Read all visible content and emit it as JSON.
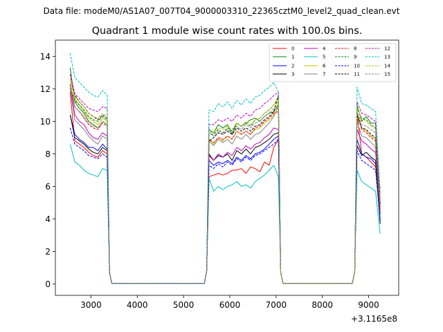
{
  "header": {
    "suptitle": "Data file: modeM0/AS1A07_007T04_9000003310_22365cztM0_level2_quad_clean.evt"
  },
  "chart_data": {
    "type": "line",
    "title": "Quadrant 1 module wise count rates with 100.0s bins.",
    "xlabel": "",
    "ylabel": "",
    "x_offset_label": "+3.1165e8",
    "xlim": [
      2230,
      9650
    ],
    "ylim": [
      -0.7,
      15.0
    ],
    "xticks": [
      3000,
      4000,
      5000,
      6000,
      7000,
      8000,
      9000
    ],
    "xtick_labels": [
      "3000",
      "4000",
      "5000",
      "6000",
      "7000",
      "8000",
      "9000"
    ],
    "yticks": [
      0,
      2,
      4,
      6,
      8,
      10,
      12,
      14
    ],
    "ytick_labels": [
      "0",
      "2",
      "4",
      "6",
      "8",
      "10",
      "12",
      "14"
    ],
    "legend_position": "top-right",
    "grid": false,
    "series": [
      {
        "name": "0",
        "color": "#ff0000",
        "dash": false,
        "base": [
          11.8,
          8.8,
          8.6,
          8.4,
          8.1,
          7.9,
          7.8,
          8.2,
          8.0,
          6.6,
          6.7,
          6.8,
          6.7,
          6.8,
          7.0,
          7.0,
          7.1,
          6.8,
          7.2,
          7.1,
          6.9,
          7.5,
          7.3,
          8.4,
          8.9,
          10.5,
          8.0,
          7.8,
          7.5,
          7.2,
          5.9
        ]
      },
      {
        "name": "1",
        "color": "#008000",
        "dash": false,
        "base": [
          13.3,
          11.2,
          10.8,
          10.5,
          10.0,
          9.8,
          9.6,
          10.0,
          9.8,
          9.5,
          9.3,
          9.8,
          9.6,
          9.8,
          9.2,
          9.9,
          9.7,
          9.9,
          10.1,
          10.2,
          10.0,
          10.3,
          10.5,
          10.6,
          11.0,
          11.0,
          10.0,
          10.3,
          9.9,
          9.9,
          4.3
        ]
      },
      {
        "name": "2",
        "color": "#0000ff",
        "dash": false,
        "base": [
          10.4,
          9.2,
          8.9,
          8.7,
          8.4,
          8.4,
          8.2,
          8.6,
          8.3,
          7.6,
          7.3,
          7.5,
          7.4,
          7.6,
          7.4,
          7.8,
          7.6,
          7.9,
          7.7,
          8.0,
          8.1,
          8.3,
          8.6,
          8.9,
          9.1,
          8.9,
          8.0,
          7.8,
          7.7,
          7.4,
          3.9
        ]
      },
      {
        "name": "3",
        "color": "#000000",
        "dash": false,
        "base": [
          10.4,
          9.0,
          8.8,
          8.6,
          8.3,
          8.1,
          8.0,
          8.4,
          8.2,
          8.0,
          7.6,
          7.9,
          7.8,
          8.0,
          7.6,
          8.2,
          8.0,
          8.3,
          8.0,
          8.4,
          8.5,
          8.7,
          8.9,
          9.2,
          9.3,
          8.5,
          7.9,
          8.1,
          7.8,
          7.6,
          3.7
        ]
      },
      {
        "name": "4",
        "color": "#bf00bf",
        "dash": false,
        "base": [
          12.3,
          10.4,
          10.0,
          9.8,
          9.3,
          9.0,
          8.9,
          9.3,
          9.1,
          7.9,
          7.6,
          8.0,
          7.8,
          8.1,
          7.9,
          8.4,
          8.2,
          8.5,
          8.3,
          8.6,
          8.7,
          9.0,
          9.2,
          9.6,
          9.5,
          9.5,
          8.8,
          8.6,
          8.3,
          8.1,
          4.5
        ]
      },
      {
        "name": "5",
        "color": "#00bfbf",
        "dash": false,
        "base": [
          8.6,
          7.5,
          7.3,
          7.0,
          6.8,
          6.7,
          6.6,
          7.1,
          7.0,
          6.5,
          5.7,
          6.0,
          5.8,
          6.0,
          6.1,
          6.3,
          6.0,
          6.1,
          5.9,
          6.3,
          6.5,
          6.7,
          7.0,
          7.3,
          6.6,
          7.0,
          6.3,
          6.1,
          5.9,
          5.7,
          3.1
        ]
      },
      {
        "name": "6",
        "color": "#bfbf00",
        "dash": false,
        "base": [
          12.6,
          11.4,
          11.0,
          10.6,
          10.2,
          10.0,
          9.8,
          10.2,
          10.0,
          8.9,
          8.6,
          9.0,
          8.8,
          9.1,
          8.9,
          9.4,
          9.2,
          9.4,
          9.2,
          9.5,
          9.6,
          9.9,
          10.1,
          10.4,
          11.3,
          10.3,
          9.6,
          9.4,
          9.1,
          8.9,
          4.8
        ]
      },
      {
        "name": "7",
        "color": "#808080",
        "dash": false,
        "base": [
          12.0,
          10.1,
          9.8,
          9.5,
          9.1,
          8.8,
          8.6,
          9.1,
          8.9,
          8.8,
          8.5,
          8.9,
          8.7,
          8.9,
          8.6,
          9.1,
          8.9,
          9.2,
          8.9,
          9.2,
          9.3,
          9.6,
          9.9,
          10.3,
          10.9,
          10.0,
          9.1,
          9.0,
          8.7,
          8.4,
          4.4
        ]
      },
      {
        "name": "8",
        "color": "#ff0000",
        "dash": true,
        "base": [
          12.3,
          10.9,
          10.6,
          10.2,
          9.8,
          9.6,
          9.5,
          9.9,
          9.7,
          8.9,
          8.7,
          9.0,
          8.9,
          9.1,
          8.9,
          9.4,
          9.2,
          9.4,
          9.2,
          9.6,
          9.7,
          10.0,
          10.2,
          10.5,
          10.6,
          10.6,
          9.5,
          9.3,
          9.0,
          8.8,
          4.6
        ]
      },
      {
        "name": "9",
        "color": "#008000",
        "dash": true,
        "base": [
          12.1,
          11.3,
          11.0,
          10.7,
          10.3,
          10.1,
          10.0,
          10.3,
          10.1,
          9.2,
          9.2,
          9.5,
          9.3,
          9.6,
          9.4,
          9.9,
          9.7,
          9.9,
          9.7,
          10.1,
          10.2,
          10.5,
          10.7,
          11.0,
          11.5,
          10.8,
          10.2,
          10.1,
          9.8,
          9.6,
          4.9
        ]
      },
      {
        "name": "10",
        "color": "#0000ff",
        "dash": true,
        "base": [
          9.6,
          8.6,
          8.4,
          8.2,
          7.9,
          7.8,
          7.7,
          8.0,
          7.8,
          7.3,
          7.1,
          7.4,
          7.2,
          7.5,
          7.3,
          7.7,
          7.5,
          7.8,
          7.6,
          7.9,
          8.0,
          8.2,
          8.4,
          8.6,
          8.9,
          8.2,
          7.6,
          7.4,
          7.2,
          7.0,
          3.9
        ]
      },
      {
        "name": "11",
        "color": "#000000",
        "dash": true,
        "base": [
          12.9,
          11.6,
          11.2,
          10.9,
          10.5,
          10.3,
          10.1,
          10.4,
          10.2,
          8.8,
          9.0,
          9.3,
          9.2,
          9.4,
          9.2,
          9.6,
          9.4,
          9.6,
          9.4,
          9.7,
          9.8,
          10.1,
          10.3,
          10.6,
          11.6,
          10.4,
          9.6,
          9.5,
          9.2,
          9.0,
          4.9
        ]
      },
      {
        "name": "12",
        "color": "#bf00bf",
        "dash": true,
        "base": [
          12.9,
          11.7,
          11.4,
          11.1,
          10.8,
          10.7,
          10.6,
          10.9,
          10.8,
          9.8,
          9.8,
          10.1,
          10.0,
          10.2,
          10.0,
          10.4,
          10.2,
          10.5,
          10.3,
          10.7,
          10.8,
          11.1,
          11.3,
          11.6,
          11.8,
          11.2,
          10.5,
          10.4,
          10.2,
          10.0,
          5.2
        ]
      },
      {
        "name": "13",
        "color": "#00bfbf",
        "dash": true,
        "base": [
          14.2,
          12.7,
          12.4,
          12.1,
          11.8,
          11.6,
          11.5,
          11.9,
          11.6,
          10.7,
          10.6,
          11.1,
          10.9,
          11.2,
          10.8,
          11.3,
          11.0,
          11.4,
          11.1,
          11.5,
          11.6,
          11.9,
          12.1,
          12.4,
          11.8,
          12.1,
          11.1,
          11.0,
          10.8,
          10.6,
          5.6
        ]
      },
      {
        "name": "14",
        "color": "#bfbf00",
        "dash": true,
        "base": [
          12.6,
          11.5,
          11.2,
          10.9,
          10.5,
          10.3,
          10.2,
          10.5,
          10.3,
          9.4,
          9.3,
          9.6,
          9.5,
          9.7,
          9.5,
          9.9,
          9.7,
          10.0,
          9.8,
          10.1,
          10.2,
          10.5,
          10.7,
          11.0,
          11.4,
          10.9,
          10.1,
          10.0,
          9.7,
          9.5,
          5.0
        ]
      },
      {
        "name": "15",
        "color": "#808080",
        "dash": true,
        "base": [
          12.2,
          10.9,
          10.6,
          10.3,
          9.9,
          9.7,
          9.6,
          10.0,
          9.8,
          9.4,
          9.1,
          9.4,
          9.2,
          9.5,
          9.3,
          9.7,
          9.5,
          9.8,
          9.6,
          9.9,
          10.0,
          10.3,
          10.5,
          10.8,
          10.8,
          10.6,
          9.8,
          9.7,
          9.5,
          9.3,
          4.9
        ]
      }
    ],
    "segments": [
      {
        "x_start": 2550,
        "x_end": 3650,
        "base_index_start": 0,
        "base_index_end": 8,
        "step": 100
      },
      {
        "x_start": 5550,
        "x_end": 7450,
        "base_index_start": 9,
        "base_index_end": 24,
        "step": 100
      },
      {
        "x_start": 8750,
        "x_end": 9350,
        "base_index_start": 25,
        "base_index_end": 30,
        "step": 100
      }
    ]
  }
}
